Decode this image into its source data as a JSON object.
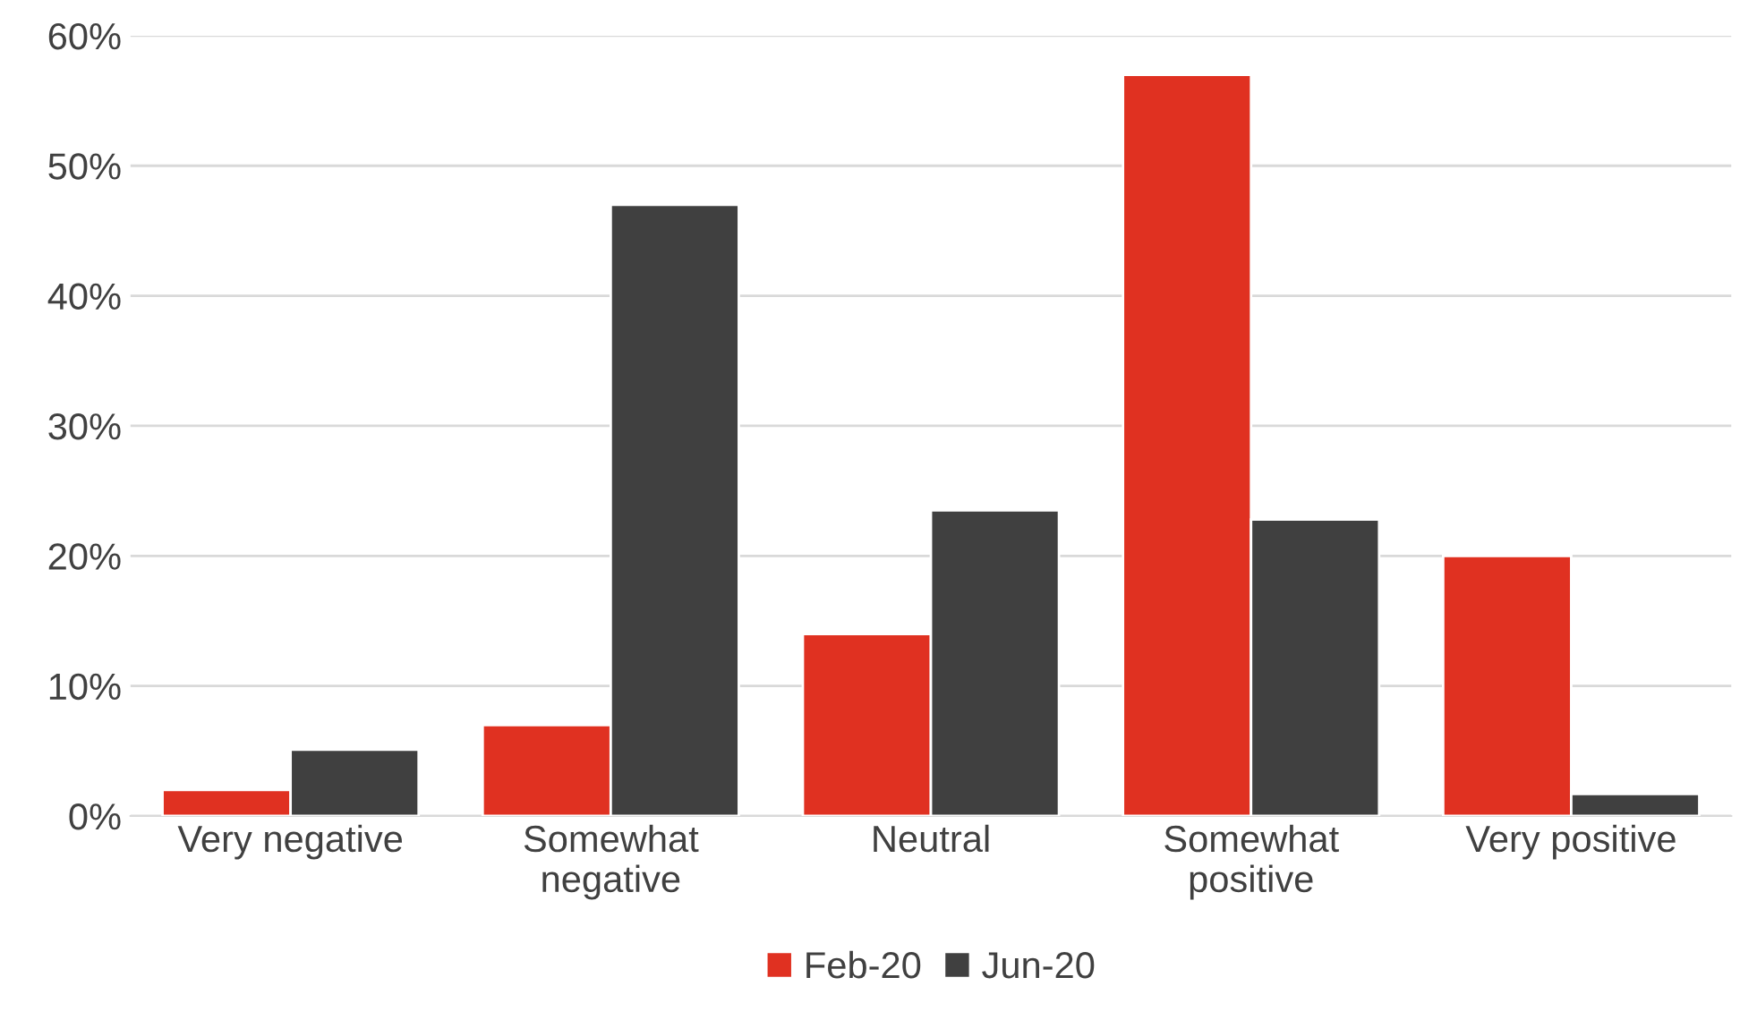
{
  "chart_data": {
    "type": "bar",
    "categories": [
      "Very negative",
      "Somewhat\nnegative",
      "Neutral",
      "Somewhat\npositive",
      "Very positive"
    ],
    "series": [
      {
        "name": "Feb-20",
        "color": "#e03121",
        "values": [
          2,
          7,
          14,
          57,
          20
        ]
      },
      {
        "name": "Jun-20",
        "color": "#404040",
        "values": [
          5.1,
          47,
          23.5,
          22.8,
          1.7
        ]
      }
    ],
    "ylim": [
      0,
      60
    ],
    "yticks": [
      {
        "value": 0,
        "label": "0%"
      },
      {
        "value": 10,
        "label": "10%"
      },
      {
        "value": 20,
        "label": "20%"
      },
      {
        "value": 30,
        "label": "30%"
      },
      {
        "value": 40,
        "label": "40%"
      },
      {
        "value": 50,
        "label": "50%"
      },
      {
        "value": 60,
        "label": "60%"
      }
    ],
    "grid": "y",
    "legend": "bottom"
  }
}
